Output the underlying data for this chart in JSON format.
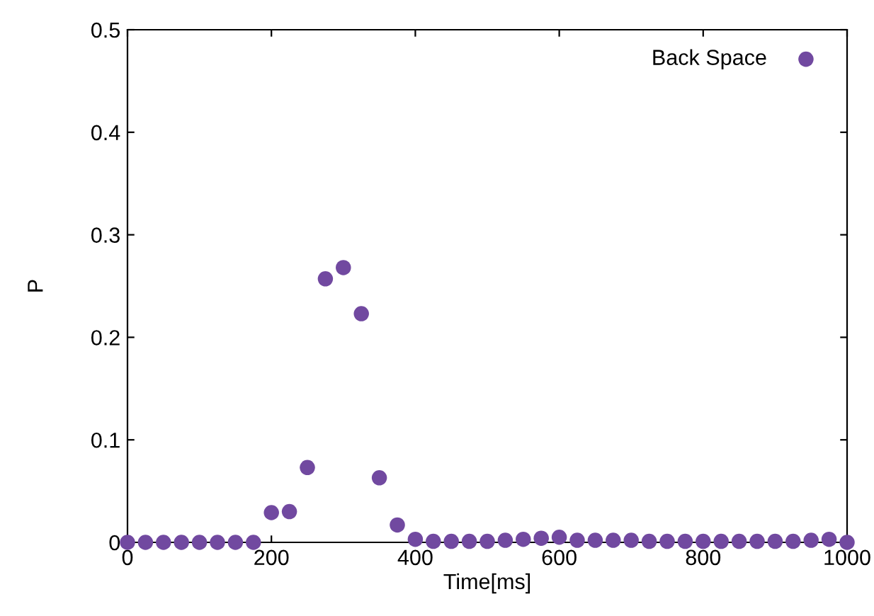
{
  "chart_data": {
    "type": "scatter",
    "xlabel": "Time[ms]",
    "ylabel": "P",
    "xlim": [
      0,
      1000
    ],
    "ylim": [
      0,
      0.5
    ],
    "xticks": [
      0,
      200,
      400,
      600,
      800,
      1000
    ],
    "yticks": [
      0,
      0.1,
      0.2,
      0.3,
      0.4,
      0.5
    ],
    "grid": false,
    "legend": "top right",
    "marker": "circle",
    "series": [
      {
        "name": "Back Space",
        "color": "#7149a0",
        "x": [
          0,
          25,
          50,
          75,
          100,
          125,
          150,
          175,
          200,
          225,
          250,
          275,
          300,
          325,
          350,
          375,
          400,
          425,
          450,
          475,
          500,
          525,
          550,
          575,
          600,
          625,
          650,
          675,
          700,
          725,
          750,
          775,
          800,
          825,
          850,
          875,
          900,
          925,
          950,
          975,
          1000
        ],
        "values": [
          0,
          0,
          0,
          0,
          0,
          0,
          0,
          0,
          0.029,
          0.03,
          0.073,
          0.257,
          0.268,
          0.223,
          0.063,
          0.017,
          0.003,
          0.001,
          0.001,
          0.001,
          0.001,
          0.002,
          0.003,
          0.004,
          0.005,
          0.002,
          0.002,
          0.002,
          0.002,
          0.001,
          0.001,
          0.001,
          0.001,
          0.001,
          0.001,
          0.001,
          0.001,
          0.001,
          0.002,
          0.003,
          0
        ]
      }
    ]
  }
}
